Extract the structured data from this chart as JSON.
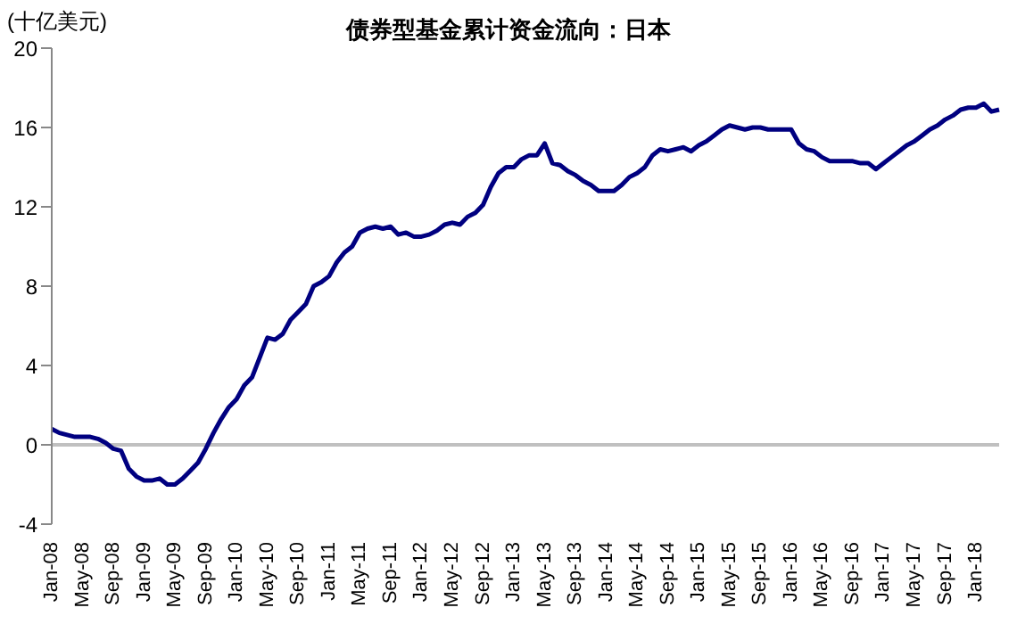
{
  "chart_data": {
    "type": "line",
    "title": "债券型基金累计资金流向：日本",
    "ylabel": "(十亿美元)",
    "categories": [
      "Jan-08",
      null,
      null,
      null,
      "May-08",
      null,
      null,
      null,
      "Sep-08",
      null,
      null,
      null,
      "Jan-09",
      null,
      null,
      null,
      "May-09",
      null,
      null,
      null,
      "Sep-09",
      null,
      null,
      null,
      "Jan-10",
      null,
      null,
      null,
      "May-10",
      null,
      null,
      null,
      "Sep-10",
      null,
      null,
      null,
      "Jan-11",
      null,
      null,
      null,
      "May-11",
      null,
      null,
      null,
      "Sep-11",
      null,
      null,
      null,
      "Jan-12",
      null,
      null,
      null,
      "May-12",
      null,
      null,
      null,
      "Sep-12",
      null,
      null,
      null,
      "Jan-13",
      null,
      null,
      null,
      "May-13",
      null,
      null,
      null,
      "Sep-13",
      null,
      null,
      null,
      "Jan-14",
      null,
      null,
      null,
      "May-14",
      null,
      null,
      null,
      "Sep-14",
      null,
      null,
      null,
      "Jan-15",
      null,
      null,
      null,
      "May-15",
      null,
      null,
      null,
      "Sep-15",
      null,
      null,
      null,
      "Jan-16",
      null,
      null,
      null,
      "May-16",
      null,
      null,
      null,
      "Sep-16",
      null,
      null,
      null,
      "Jan-17",
      null,
      null,
      null,
      "May-17",
      null,
      null,
      null,
      "Sep-17",
      null,
      null,
      null,
      "Jan-18",
      null,
      null,
      null
    ],
    "series": [
      {
        "color": "#000080",
        "values": [
          0.8,
          0.6,
          0.5,
          0.4,
          0.4,
          0.4,
          0.3,
          0.1,
          -0.2,
          -0.3,
          -1.2,
          -1.6,
          -1.8,
          -1.8,
          -1.7,
          -2.0,
          -2.0,
          -1.7,
          -1.3,
          -0.9,
          -0.2,
          0.6,
          1.3,
          1.9,
          2.3,
          3.0,
          3.4,
          4.4,
          5.4,
          5.3,
          5.6,
          6.3,
          6.7,
          7.1,
          8.0,
          8.2,
          8.5,
          9.2,
          9.7,
          10.0,
          10.7,
          10.9,
          11.0,
          10.9,
          11.0,
          10.6,
          10.7,
          10.5,
          10.5,
          10.6,
          10.8,
          11.1,
          11.2,
          11.1,
          11.5,
          11.7,
          12.1,
          13.0,
          13.7,
          14.0,
          14.0,
          14.4,
          14.6,
          14.6,
          15.2,
          14.2,
          14.1,
          13.8,
          13.6,
          13.3,
          13.1,
          12.8,
          12.8,
          12.8,
          13.1,
          13.5,
          13.7,
          14.0,
          14.6,
          14.9,
          14.8,
          14.9,
          15.0,
          14.8,
          15.1,
          15.3,
          15.6,
          15.9,
          16.1,
          16.0,
          15.9,
          16.0,
          16.0,
          15.9,
          15.9,
          15.9,
          15.9,
          15.2,
          14.9,
          14.8,
          14.5,
          14.3,
          14.3,
          14.3,
          14.3,
          14.2,
          14.2,
          13.9,
          14.2,
          14.5,
          14.8,
          15.1,
          15.3,
          15.6,
          15.9,
          16.1,
          16.4,
          16.6,
          16.9,
          17.0,
          17.0,
          17.2,
          16.8,
          16.9
        ]
      }
    ],
    "ylim": [
      -4,
      20
    ],
    "yticks": [
      -4,
      0,
      4,
      8,
      12,
      16,
      20
    ],
    "ref_lines": [
      {
        "axis": "y",
        "value": 0,
        "color": "#c0c0c0"
      }
    ],
    "grid": false,
    "legend": false,
    "marker": "none",
    "line_style": "solid"
  }
}
